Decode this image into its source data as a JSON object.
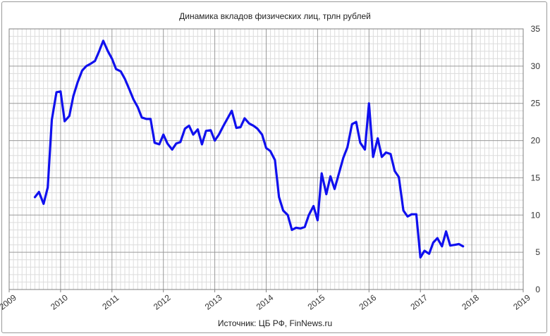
{
  "chart_data": {
    "type": "line",
    "title": "Динамика вкладов физических лиц, трлн рублей",
    "source": "Источник: ЦБ РФ, FinNews.ru",
    "xlim": [
      2009,
      2019
    ],
    "ylim": [
      0,
      35
    ],
    "x_ticks": [
      "2009",
      "2010",
      "2011",
      "2012",
      "2013",
      "2014",
      "2015",
      "2016",
      "2017",
      "2018",
      "2019"
    ],
    "y_ticks": [
      "0",
      "5",
      "10",
      "15",
      "20",
      "25",
      "30",
      "35"
    ],
    "y_axis_position": "right",
    "grid": true,
    "legend": "none",
    "series": [
      {
        "color": "#1010ee",
        "x": [
          2009.5,
          2009.58,
          2009.67,
          2009.75,
          2009.83,
          2009.92,
          2010.0,
          2010.08,
          2010.17,
          2010.25,
          2010.33,
          2010.42,
          2010.5,
          2010.58,
          2010.67,
          2010.75,
          2010.83,
          2010.92,
          2011.0,
          2011.08,
          2011.17,
          2011.25,
          2011.33,
          2011.42,
          2011.5,
          2011.58,
          2011.67,
          2011.75,
          2011.83,
          2011.92,
          2012.0,
          2012.08,
          2012.17,
          2012.25,
          2012.33,
          2012.42,
          2012.5,
          2012.58,
          2012.67,
          2012.75,
          2012.83,
          2012.92,
          2013.0,
          2013.08,
          2013.17,
          2013.25,
          2013.33,
          2013.42,
          2013.5,
          2013.58,
          2013.67,
          2013.75,
          2013.83,
          2013.92,
          2014.0,
          2014.08,
          2014.17,
          2014.25,
          2014.33,
          2014.42,
          2014.5,
          2014.58,
          2014.67,
          2014.75,
          2014.83,
          2014.92,
          2015.0,
          2015.08,
          2015.17,
          2015.25,
          2015.33,
          2015.42,
          2015.5,
          2015.58,
          2015.67,
          2015.75,
          2015.83,
          2015.92,
          2016.0,
          2016.08,
          2016.17,
          2016.25,
          2016.33,
          2016.42,
          2016.5,
          2016.58,
          2016.67,
          2016.75,
          2016.83,
          2016.92,
          2017.0,
          2017.08,
          2017.17,
          2017.25,
          2017.33,
          2017.42,
          2017.5,
          2017.58,
          2017.67,
          2017.75,
          2017.83
        ],
        "y": [
          12.4,
          13.1,
          11.5,
          13.7,
          22.8,
          26.5,
          26.6,
          22.6,
          23.3,
          26.0,
          27.8,
          29.4,
          30.0,
          30.3,
          30.7,
          32.0,
          33.4,
          32.0,
          31.0,
          29.6,
          29.3,
          28.3,
          27.0,
          25.5,
          24.5,
          23.1,
          22.9,
          22.9,
          19.7,
          19.5,
          20.8,
          19.6,
          18.8,
          19.6,
          19.8,
          21.6,
          22.0,
          20.8,
          21.5,
          19.5,
          21.3,
          21.4,
          20.0,
          20.8,
          22.0,
          23.0,
          24.0,
          21.7,
          21.8,
          23.0,
          22.3,
          22.0,
          21.6,
          20.8,
          19.0,
          18.6,
          17.4,
          12.4,
          10.6,
          10.0,
          8.0,
          8.3,
          8.2,
          8.4,
          10.0,
          11.2,
          9.3,
          15.6,
          12.8,
          15.2,
          13.5,
          15.7,
          17.7,
          19.1,
          22.2,
          22.5,
          19.7,
          18.8,
          25.0,
          17.8,
          20.3,
          17.8,
          18.4,
          18.2,
          15.9,
          15.1,
          10.6,
          9.8,
          10.1,
          10.1,
          4.3,
          5.2,
          4.8,
          6.3,
          6.9,
          5.8,
          7.8,
          5.9,
          6.0,
          6.1,
          5.8
        ]
      }
    ]
  }
}
